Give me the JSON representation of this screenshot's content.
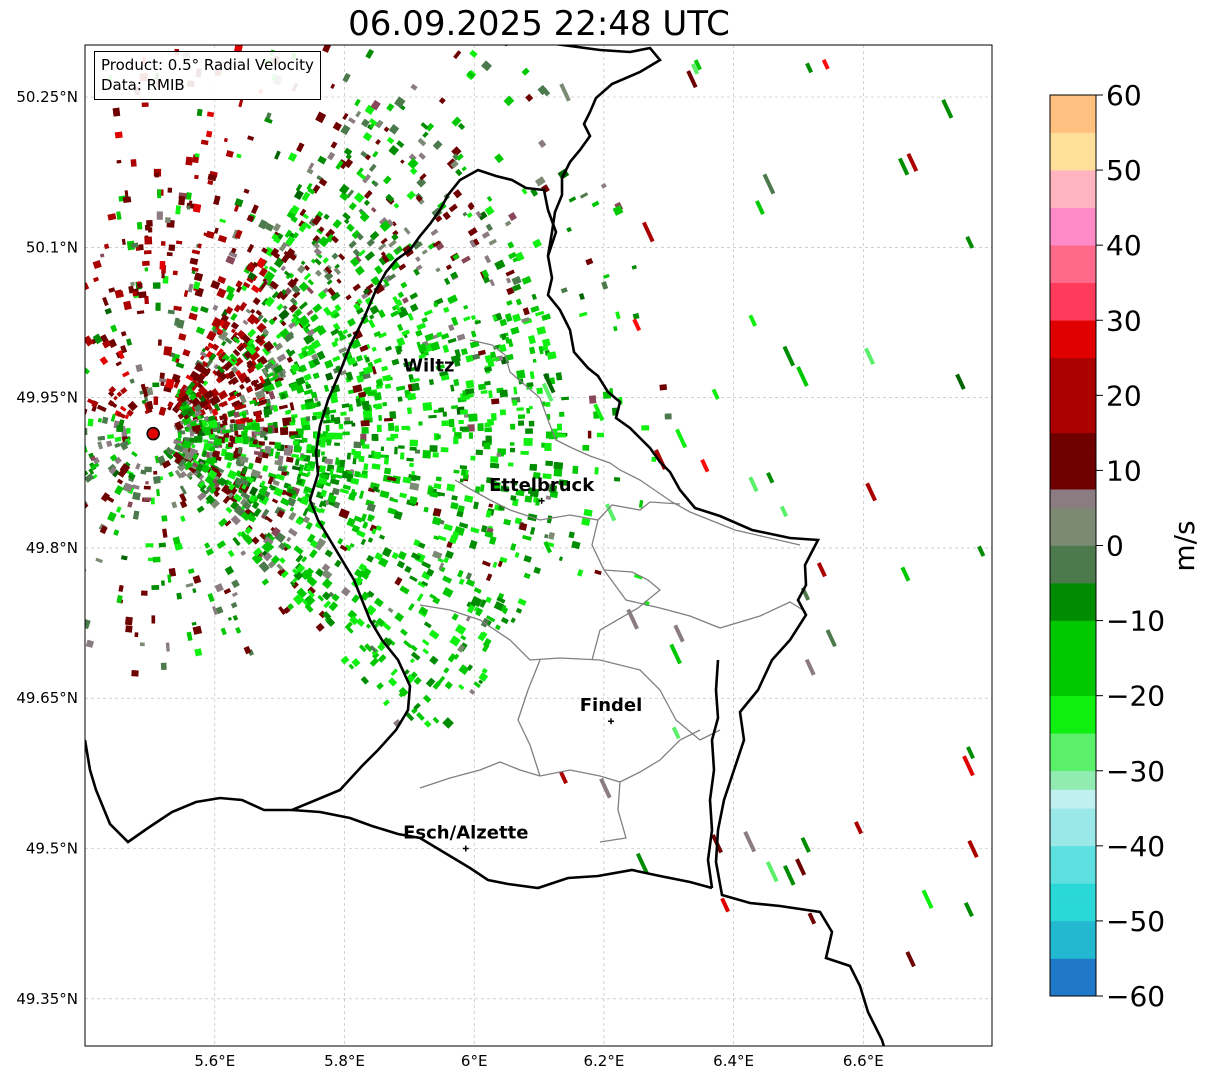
{
  "title": "06.09.2025 22:48 UTC",
  "info": {
    "product_line": "Product: 0.5° Radial Velocity",
    "data_line": "Data: RMIB"
  },
  "map": {
    "lon_range": [
      5.4,
      6.8
    ],
    "lat_range": [
      49.3,
      50.3
    ],
    "lon_ticks": [
      {
        "value": 5.6,
        "label": "5.6°E"
      },
      {
        "value": 5.8,
        "label": "5.8°E"
      },
      {
        "value": 6.0,
        "label": "6°E"
      },
      {
        "value": 6.2,
        "label": "6.2°E"
      },
      {
        "value": 6.4,
        "label": "6.4°E"
      },
      {
        "value": 6.6,
        "label": "6.6°E"
      }
    ],
    "lat_ticks": [
      {
        "value": 49.35,
        "label": "49.35°N"
      },
      {
        "value": 49.5,
        "label": "49.5°N"
      },
      {
        "value": 49.65,
        "label": "49.65°N"
      },
      {
        "value": 49.8,
        "label": "49.8°N"
      },
      {
        "value": 49.95,
        "label": "49.95°N"
      },
      {
        "value": 50.1,
        "label": "50.1°N"
      },
      {
        "value": 50.25,
        "label": "50.25°N"
      }
    ],
    "radar_site": {
      "lon": 5.505,
      "lat": 49.914
    },
    "cities": [
      {
        "name": "Wiltz",
        "lon": 5.93,
        "lat": 49.966,
        "marker": false
      },
      {
        "name": "Ettelbruck",
        "lon": 6.104,
        "lat": 49.847,
        "marker": true
      },
      {
        "name": "Findel",
        "lon": 6.211,
        "lat": 49.627,
        "marker": true
      },
      {
        "name": "Esch/Alzette",
        "lon": 5.987,
        "lat": 49.5,
        "marker": true
      }
    ]
  },
  "colorbar": {
    "label": "m/s",
    "min": -60,
    "max": 60,
    "ticks": [
      {
        "value": 60,
        "label": "60"
      },
      {
        "value": 50,
        "label": "50"
      },
      {
        "value": 40,
        "label": "40"
      },
      {
        "value": 30,
        "label": "30"
      },
      {
        "value": 20,
        "label": "20"
      },
      {
        "value": 10,
        "label": "10"
      },
      {
        "value": 0,
        "label": "0"
      },
      {
        "value": -10,
        "label": "−10"
      },
      {
        "value": -20,
        "label": "−20"
      },
      {
        "value": -30,
        "label": "−30"
      },
      {
        "value": -40,
        "label": "−40"
      },
      {
        "value": -50,
        "label": "−50"
      },
      {
        "value": -60,
        "label": "−60"
      }
    ],
    "stops": [
      {
        "v": -60,
        "color": "#1f78c8"
      },
      {
        "v": -55,
        "color": "#22b8d0"
      },
      {
        "v": -50,
        "color": "#2ad8d8"
      },
      {
        "v": -45,
        "color": "#5ee0e0"
      },
      {
        "v": -40,
        "color": "#9ae8e8"
      },
      {
        "v": -36,
        "color": "#c0f0f0"
      },
      {
        "v": -34,
        "color": "#90ecb0"
      },
      {
        "v": -30,
        "color": "#5af06a"
      },
      {
        "v": -27,
        "color": "#10f010"
      },
      {
        "v": -20,
        "color": "#00c800"
      },
      {
        "v": -12,
        "color": "#008c00"
      },
      {
        "v": -6,
        "color": "#006400"
      },
      {
        "v": -5,
        "color": "#4c7a4c"
      },
      {
        "v": 0,
        "color": "#7c8a74"
      },
      {
        "v": 3,
        "color": "#8a7c80"
      },
      {
        "v": 6,
        "color": "#884858"
      },
      {
        "v": 7,
        "color": "#6e0000"
      },
      {
        "v": 15,
        "color": "#aa0000"
      },
      {
        "v": 24,
        "color": "#e00000"
      },
      {
        "v": 28,
        "color": "#ff0a0a"
      },
      {
        "v": 30,
        "color": "#ff3a5a"
      },
      {
        "v": 35,
        "color": "#ff6a8a"
      },
      {
        "v": 40,
        "color": "#ff8ac8"
      },
      {
        "v": 44,
        "color": "#ffb4c0"
      },
      {
        "v": 48,
        "color": "#ffe09a"
      },
      {
        "v": 53,
        "color": "#ffc080"
      },
      {
        "v": 60,
        "color": "#ff9a50"
      }
    ]
  }
}
